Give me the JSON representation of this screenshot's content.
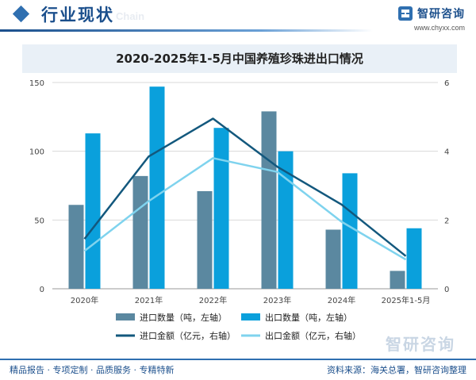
{
  "header": {
    "title": "行业现状",
    "subtitle": "Chain",
    "brand_name": "智研咨询",
    "brand_site": "www.chyxx.com"
  },
  "chart_data": {
    "type": "bar",
    "title": "2020-2025年1-5月中国养殖珍珠进出口情况",
    "categories": [
      "2020年",
      "2021年",
      "2022年",
      "2023年",
      "2024年",
      "2025年1-5月"
    ],
    "left_axis": {
      "ylim": [
        0,
        150
      ],
      "ticks": [
        "0",
        "50",
        "100",
        "150"
      ]
    },
    "right_axis": {
      "ylim": [
        0,
        6
      ],
      "ticks": [
        "0",
        "2",
        "4",
        "6"
      ]
    },
    "series": [
      {
        "name": "进口数量（吨，左轴）",
        "type": "bar",
        "axis": "left",
        "color": "#5b88a0",
        "values": [
          61,
          82,
          71,
          129,
          43,
          13
        ]
      },
      {
        "name": "出口数量（吨，左轴）",
        "type": "bar",
        "axis": "left",
        "color": "#0aa0dc",
        "values": [
          113,
          147,
          117,
          100,
          84,
          44
        ]
      },
      {
        "name": "进口金额（亿元，右轴）",
        "type": "line",
        "axis": "right",
        "color": "#13587d",
        "values": [
          1.45,
          3.85,
          4.95,
          3.55,
          2.45,
          0.95
        ]
      },
      {
        "name": "出口金额（亿元，右轴）",
        "type": "line",
        "axis": "right",
        "color": "#7fd3ee",
        "values": [
          1.1,
          2.55,
          3.8,
          3.4,
          1.95,
          0.85
        ]
      }
    ],
    "legend_position": "bottom"
  },
  "footer": {
    "left": "精品报告 · 专项定制 · 品质服务 · 专精特新",
    "right": "资料来源：海关总署，智研咨询整理"
  },
  "watermark": "智研咨询"
}
